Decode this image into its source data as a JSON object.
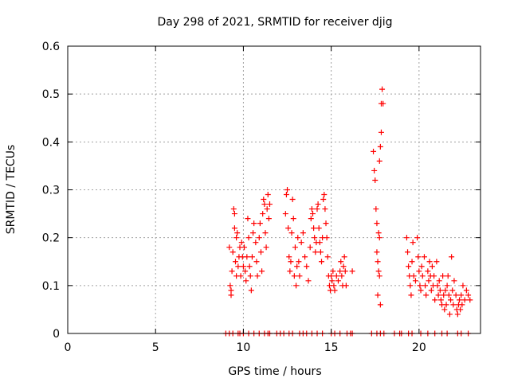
{
  "chart_data": {
    "type": "scatter",
    "title": "Day 298 of 2021, SRMTID for receiver djig",
    "xlabel": "GPS time / hours",
    "ylabel": "SRMTID / TECUs",
    "xlim": [
      0,
      23.5
    ],
    "ylim": [
      0,
      0.6
    ],
    "xticks": [
      0,
      5,
      10,
      15,
      20
    ],
    "xtick_labels": [
      "0",
      "5",
      "10",
      "15",
      "20"
    ],
    "yticks": [
      0,
      0.1,
      0.2,
      0.3,
      0.4,
      0.5,
      0.6
    ],
    "ytick_labels": [
      "0",
      "0.1",
      "0.2",
      "0.3",
      "0.4",
      "0.5",
      "0.6"
    ],
    "grid": true,
    "marker": "+",
    "color": "#ff0000",
    "series": [
      {
        "name": "SRMTID",
        "points": [
          [
            9.2,
            0.18
          ],
          [
            9.25,
            0.1
          ],
          [
            9.3,
            0.09
          ],
          [
            9.3,
            0.08
          ],
          [
            9.35,
            0.13
          ],
          [
            9.4,
            0.17
          ],
          [
            9.45,
            0.26
          ],
          [
            9.5,
            0.25
          ],
          [
            9.5,
            0.22
          ],
          [
            9.55,
            0.15
          ],
          [
            9.6,
            0.12
          ],
          [
            9.6,
            0.2
          ],
          [
            9.65,
            0.21
          ],
          [
            9.7,
            0.14
          ],
          [
            9.75,
            0.16
          ],
          [
            9.8,
            0.18
          ],
          [
            9.85,
            0.12
          ],
          [
            9.9,
            0.19
          ],
          [
            9.95,
            0.16
          ],
          [
            10.0,
            0.14
          ],
          [
            10.05,
            0.18
          ],
          [
            10.1,
            0.13
          ],
          [
            10.15,
            0.11
          ],
          [
            10.2,
            0.16
          ],
          [
            10.25,
            0.24
          ],
          [
            10.3,
            0.2
          ],
          [
            10.35,
            0.14
          ],
          [
            10.4,
            0.12
          ],
          [
            10.45,
            0.09
          ],
          [
            10.5,
            0.16
          ],
          [
            10.55,
            0.21
          ],
          [
            10.6,
            0.23
          ],
          [
            10.7,
            0.19
          ],
          [
            10.75,
            0.15
          ],
          [
            10.8,
            0.12
          ],
          [
            10.9,
            0.2
          ],
          [
            10.95,
            0.23
          ],
          [
            11.0,
            0.17
          ],
          [
            11.05,
            0.13
          ],
          [
            11.1,
            0.25
          ],
          [
            11.15,
            0.28
          ],
          [
            11.2,
            0.27
          ],
          [
            11.25,
            0.21
          ],
          [
            11.3,
            0.18
          ],
          [
            11.35,
            0.26
          ],
          [
            11.4,
            0.29
          ],
          [
            11.45,
            0.24
          ],
          [
            11.5,
            0.27
          ],
          [
            12.4,
            0.25
          ],
          [
            12.45,
            0.29
          ],
          [
            12.5,
            0.3
          ],
          [
            12.55,
            0.22
          ],
          [
            12.6,
            0.16
          ],
          [
            12.65,
            0.13
          ],
          [
            12.7,
            0.15
          ],
          [
            12.75,
            0.21
          ],
          [
            12.8,
            0.28
          ],
          [
            12.85,
            0.24
          ],
          [
            12.9,
            0.12
          ],
          [
            12.95,
            0.18
          ],
          [
            13.0,
            0.1
          ],
          [
            13.05,
            0.14
          ],
          [
            13.1,
            0.2
          ],
          [
            13.15,
            0.15
          ],
          [
            13.2,
            0.12
          ],
          [
            13.3,
            0.19
          ],
          [
            13.4,
            0.21
          ],
          [
            13.5,
            0.16
          ],
          [
            13.6,
            0.14
          ],
          [
            13.7,
            0.11
          ],
          [
            13.8,
            0.18
          ],
          [
            13.85,
            0.24
          ],
          [
            13.9,
            0.26
          ],
          [
            13.95,
            0.25
          ],
          [
            14.0,
            0.22
          ],
          [
            14.05,
            0.2
          ],
          [
            14.1,
            0.17
          ],
          [
            14.15,
            0.19
          ],
          [
            14.2,
            0.26
          ],
          [
            14.25,
            0.27
          ],
          [
            14.3,
            0.22
          ],
          [
            14.35,
            0.19
          ],
          [
            14.4,
            0.17
          ],
          [
            14.45,
            0.15
          ],
          [
            14.5,
            0.2
          ],
          [
            14.55,
            0.28
          ],
          [
            14.6,
            0.29
          ],
          [
            14.65,
            0.26
          ],
          [
            14.7,
            0.23
          ],
          [
            14.75,
            0.2
          ],
          [
            14.8,
            0.16
          ],
          [
            14.85,
            0.12
          ],
          [
            14.9,
            0.1
          ],
          [
            14.95,
            0.09
          ],
          [
            15.0,
            0.12
          ],
          [
            15.05,
            0.11
          ],
          [
            15.1,
            0.13
          ],
          [
            15.15,
            0.1
          ],
          [
            15.2,
            0.09
          ],
          [
            15.3,
            0.12
          ],
          [
            15.4,
            0.11
          ],
          [
            15.5,
            0.13
          ],
          [
            15.55,
            0.15
          ],
          [
            15.6,
            0.12
          ],
          [
            15.65,
            0.1
          ],
          [
            15.7,
            0.14
          ],
          [
            15.75,
            0.16
          ],
          [
            15.8,
            0.13
          ],
          [
            15.85,
            0.1
          ],
          [
            16.2,
            0.13
          ],
          [
            17.4,
            0.38
          ],
          [
            17.45,
            0.34
          ],
          [
            17.5,
            0.32
          ],
          [
            17.55,
            0.26
          ],
          [
            17.6,
            0.23
          ],
          [
            17.6,
            0.17
          ],
          [
            17.65,
            0.15
          ],
          [
            17.65,
            0.08
          ],
          [
            17.7,
            0.21
          ],
          [
            17.75,
            0.36
          ],
          [
            17.8,
            0.39
          ],
          [
            17.85,
            0.42
          ],
          [
            17.85,
            0.48
          ],
          [
            17.9,
            0.51
          ],
          [
            17.95,
            0.48
          ],
          [
            17.75,
            0.2
          ],
          [
            17.7,
            0.13
          ],
          [
            17.8,
            0.06
          ],
          [
            17.75,
            0.12
          ],
          [
            19.3,
            0.2
          ],
          [
            19.35,
            0.17
          ],
          [
            19.4,
            0.14
          ],
          [
            19.45,
            0.12
          ],
          [
            19.5,
            0.1
          ],
          [
            19.55,
            0.08
          ],
          [
            19.6,
            0.15
          ],
          [
            19.65,
            0.19
          ],
          [
            19.7,
            0.12
          ],
          [
            19.8,
            0.11
          ],
          [
            19.9,
            0.2
          ],
          [
            19.95,
            0.16
          ],
          [
            20.0,
            0.13
          ],
          [
            20.05,
            0.1
          ],
          [
            20.1,
            0.09
          ],
          [
            20.15,
            0.14
          ],
          [
            20.2,
            0.12
          ],
          [
            20.3,
            0.16
          ],
          [
            20.35,
            0.1
          ],
          [
            20.4,
            0.08
          ],
          [
            20.5,
            0.13
          ],
          [
            20.55,
            0.11
          ],
          [
            20.6,
            0.15
          ],
          [
            20.65,
            0.12
          ],
          [
            20.7,
            0.09
          ],
          [
            20.75,
            0.14
          ],
          [
            20.8,
            0.1
          ],
          [
            20.85,
            0.12
          ],
          [
            20.9,
            0.07
          ],
          [
            21.0,
            0.15
          ],
          [
            21.05,
            0.1
          ],
          [
            21.1,
            0.08
          ],
          [
            21.15,
            0.11
          ],
          [
            21.2,
            0.09
          ],
          [
            21.25,
            0.07
          ],
          [
            21.3,
            0.06
          ],
          [
            21.35,
            0.12
          ],
          [
            21.4,
            0.08
          ],
          [
            21.45,
            0.05
          ],
          [
            21.5,
            0.09
          ],
          [
            21.55,
            0.06
          ],
          [
            21.6,
            0.1
          ],
          [
            21.65,
            0.12
          ],
          [
            21.7,
            0.08
          ],
          [
            21.75,
            0.04
          ],
          [
            21.8,
            0.07
          ],
          [
            21.85,
            0.16
          ],
          [
            21.9,
            0.09
          ],
          [
            21.95,
            0.06
          ],
          [
            22.0,
            0.11
          ],
          [
            22.1,
            0.08
          ],
          [
            22.15,
            0.05
          ],
          [
            22.2,
            0.04
          ],
          [
            22.25,
            0.06
          ],
          [
            22.3,
            0.07
          ],
          [
            22.35,
            0.05
          ],
          [
            22.4,
            0.08
          ],
          [
            22.45,
            0.06
          ],
          [
            22.5,
            0.1
          ],
          [
            22.6,
            0.07
          ],
          [
            22.7,
            0.09
          ],
          [
            22.8,
            0.08
          ],
          [
            22.9,
            0.07
          ],
          [
            9.0,
            0
          ],
          [
            9.2,
            0
          ],
          [
            9.4,
            0
          ],
          [
            9.7,
            0
          ],
          [
            9.8,
            0
          ],
          [
            10.0,
            0
          ],
          [
            10.3,
            0
          ],
          [
            10.6,
            0
          ],
          [
            10.9,
            0
          ],
          [
            11.2,
            0
          ],
          [
            11.4,
            0
          ],
          [
            11.5,
            0
          ],
          [
            11.9,
            0
          ],
          [
            12.1,
            0
          ],
          [
            12.3,
            0
          ],
          [
            12.6,
            0
          ],
          [
            12.8,
            0
          ],
          [
            13.2,
            0
          ],
          [
            13.4,
            0
          ],
          [
            13.6,
            0
          ],
          [
            13.9,
            0
          ],
          [
            14.2,
            0
          ],
          [
            14.5,
            0
          ],
          [
            15.0,
            0
          ],
          [
            15.2,
            0
          ],
          [
            15.5,
            0
          ],
          [
            15.9,
            0
          ],
          [
            16.1,
            0
          ],
          [
            16.2,
            0
          ],
          [
            17.3,
            0
          ],
          [
            17.6,
            0
          ],
          [
            17.8,
            0
          ],
          [
            18.0,
            0
          ],
          [
            18.6,
            0
          ],
          [
            18.9,
            0
          ],
          [
            19.0,
            0
          ],
          [
            19.4,
            0
          ],
          [
            19.6,
            0
          ],
          [
            20.1,
            0
          ],
          [
            20.5,
            0
          ],
          [
            20.9,
            0
          ],
          [
            21.3,
            0
          ],
          [
            21.6,
            0
          ],
          [
            22.2,
            0
          ],
          [
            22.4,
            0
          ],
          [
            22.8,
            0
          ]
        ]
      }
    ]
  }
}
